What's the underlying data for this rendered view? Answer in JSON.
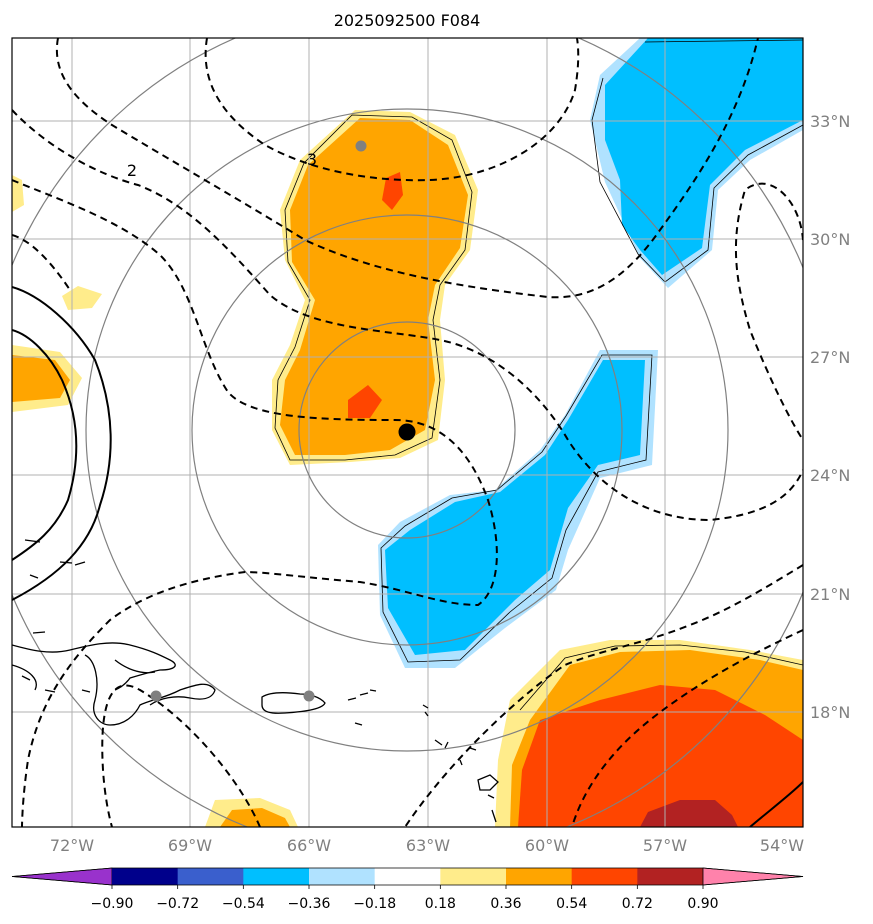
{
  "title": "2025092500 F084",
  "colors": {
    "orange": "#ffa500",
    "light_yellow": "#ffec8b",
    "red_orange": "#ff4500",
    "dark_red": "#b22222",
    "sky_blue": "#00bfff",
    "light_blue": "#b0e2ff",
    "gridline": "#b0b0b0",
    "range_ring": "#808080",
    "contour": "#000000",
    "marker_gray": "#808080"
  },
  "axes": {
    "lon_labels": [
      "72°W",
      "69°W",
      "66°W",
      "63°W",
      "60°W",
      "57°W",
      "54°W"
    ],
    "lat_labels": [
      "33°N",
      "30°N",
      "27°N",
      "24°N",
      "21°N",
      "18°N"
    ]
  },
  "contour_labels": [
    "2",
    "3"
  ],
  "colorbar": {
    "colors": [
      "#9932cc",
      "#00008b",
      "#3a5fcd",
      "#00bfff",
      "#b0e2ff",
      "#ffffff",
      "#ffec8b",
      "#ffa500",
      "#ff4500",
      "#b22222",
      "#ff82ab"
    ],
    "ticks": [
      "−0.90",
      "−0.72",
      "−0.54",
      "−0.36",
      "−0.18",
      "0.18",
      "0.36",
      "0.54",
      "0.72",
      "0.90"
    ]
  },
  "markers": {
    "storm_center": "black-dot",
    "stations": [
      "gray-dot",
      "gray-dot",
      "gray-dot"
    ]
  }
}
